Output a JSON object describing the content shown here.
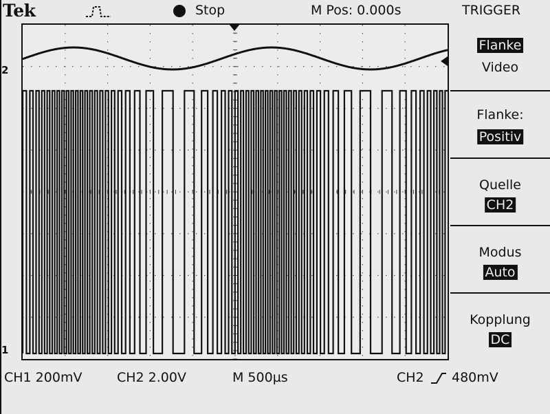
{
  "header": {
    "brand": "Tek",
    "trigger_icon": "pulse-trigger-icon",
    "run_state": "Stop",
    "position": "M Pos: 0.000s",
    "menu_title": "TRIGGER"
  },
  "markers": {
    "ch2": "2",
    "ch1": "1"
  },
  "side_menu": {
    "type": {
      "active": "Flanke",
      "other": "Video"
    },
    "slope": {
      "label": "Flanke:",
      "value": "Positiv"
    },
    "source": {
      "label": "Quelle",
      "value": "CH2"
    },
    "mode": {
      "label": "Modus",
      "value": "Auto"
    },
    "coupling": {
      "label": "Kopplung",
      "value": "DC"
    }
  },
  "status": {
    "ch1": "CH1  200mV",
    "ch2": "CH2  2.00V",
    "timebase": "M 500µs",
    "trigger_source": "CH2",
    "trigger_level": "480mV"
  },
  "colors": {
    "background": "#e9e9e9",
    "trace": "#111111"
  }
}
